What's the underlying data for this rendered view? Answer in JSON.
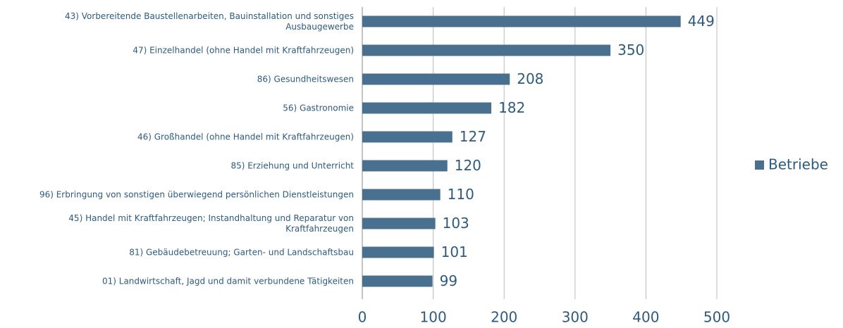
{
  "chart_data": {
    "type": "bar",
    "orientation": "horizontal",
    "categories": [
      "43) Vorbereitende Baustellenarbeiten, Bauinstallation und sonstiges Ausbaugewerbe",
      "47) Einzelhandel (ohne Handel mit Kraftfahrzeugen)",
      "86) Gesundheitswesen",
      "56) Gastronomie",
      "46) Großhandel (ohne Handel mit Kraftfahrzeugen)",
      "85) Erziehung und Unterricht",
      "96) Erbringung von sonstigen überwiegend persönlichen Dienstleistungen",
      "45) Handel mit Kraftfahrzeugen; Instandhaltung und Reparatur von Kraftfahrzeugen",
      "81) Gebäudebetreuung; Garten- und Landschaftsbau",
      "01) Landwirtschaft, Jagd und damit verbundene Tätigkeiten"
    ],
    "series": [
      {
        "name": "Betriebe",
        "color": "#4a7090",
        "values": [
          449,
          350,
          208,
          182,
          127,
          120,
          110,
          103,
          101,
          99
        ]
      }
    ],
    "xlim": [
      0,
      500
    ],
    "xticks": [
      0,
      100,
      200,
      300,
      400,
      500
    ],
    "grid": true,
    "legend": "right"
  }
}
